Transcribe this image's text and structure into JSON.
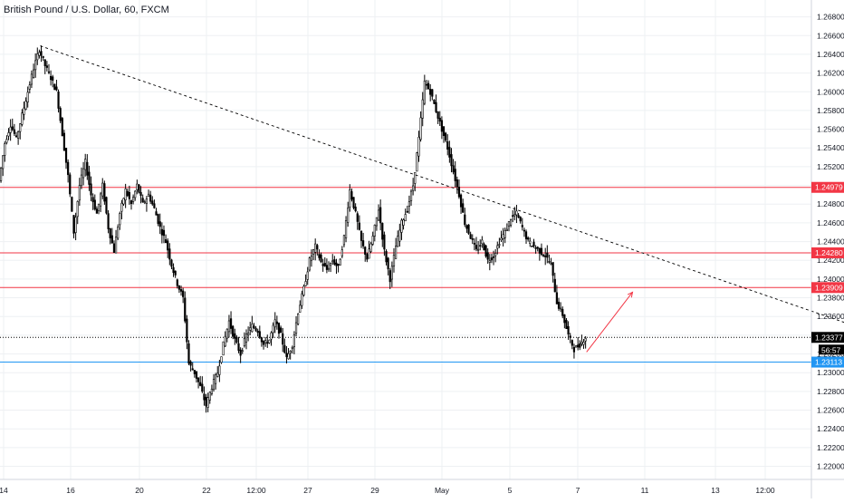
{
  "chart_data": {
    "type": "candlestick",
    "title": "British Pound / U.S. Dollar, 60, FXCM",
    "x_ticks": [
      "14",
      "16",
      "20",
      "22",
      "12:00",
      "27",
      "29",
      "May",
      "5",
      "7",
      "11",
      "13",
      "12:00"
    ],
    "y_ticks": [
      "1.26800",
      "1.26600",
      "1.26400",
      "1.26200",
      "1.26000",
      "1.25800",
      "1.25600",
      "1.25400",
      "1.25200",
      "1.25000",
      "1.24800",
      "1.24600",
      "1.24400",
      "1.24200",
      "1.24000",
      "1.23800",
      "1.23600",
      "1.23400",
      "1.23200",
      "1.23000",
      "1.22800",
      "1.22600",
      "1.22400",
      "1.22200",
      "1.22000"
    ],
    "ylim": [
      1.2186,
      1.2698
    ],
    "price_path": [
      [
        0,
        1.2505
      ],
      [
        1,
        1.2545
      ],
      [
        2,
        1.2565
      ],
      [
        3,
        1.255
      ],
      [
        4,
        1.2575
      ],
      [
        5,
        1.26
      ],
      [
        6,
        1.2625
      ],
      [
        7,
        1.2645
      ],
      [
        8,
        1.2628
      ],
      [
        9,
        1.2615
      ],
      [
        10,
        1.26
      ],
      [
        11,
        1.2555
      ],
      [
        12,
        1.251
      ],
      [
        13,
        1.245
      ],
      [
        14,
        1.25
      ],
      [
        15,
        1.2525
      ],
      [
        16,
        1.249
      ],
      [
        17,
        1.247
      ],
      [
        18,
        1.25
      ],
      [
        19,
        1.2455
      ],
      [
        20,
        1.243
      ],
      [
        21,
        1.247
      ],
      [
        22,
        1.2495
      ],
      [
        23,
        1.248
      ],
      [
        24,
        1.25
      ],
      [
        25,
        1.248
      ],
      [
        26,
        1.249
      ],
      [
        27,
        1.2475
      ],
      [
        28,
        1.2455
      ],
      [
        29,
        1.244
      ],
      [
        30,
        1.2415
      ],
      [
        31,
        1.2395
      ],
      [
        32,
        1.238
      ],
      [
        33,
        1.231
      ],
      [
        34,
        1.23
      ],
      [
        35,
        1.2285
      ],
      [
        36,
        1.2265
      ],
      [
        37,
        1.2285
      ],
      [
        38,
        1.23
      ],
      [
        39,
        1.233
      ],
      [
        40,
        1.2355
      ],
      [
        41,
        1.2335
      ],
      [
        42,
        1.232
      ],
      [
        43,
        1.234
      ],
      [
        44,
        1.235
      ],
      [
        45,
        1.2345
      ],
      [
        46,
        1.233
      ],
      [
        47,
        1.2335
      ],
      [
        48,
        1.2355
      ],
      [
        49,
        1.234
      ],
      [
        50,
        1.2315
      ],
      [
        51,
        1.233
      ],
      [
        52,
        1.2365
      ],
      [
        53,
        1.239
      ],
      [
        54,
        1.242
      ],
      [
        55,
        1.2435
      ],
      [
        56,
        1.2418
      ],
      [
        57,
        1.241
      ],
      [
        58,
        1.242
      ],
      [
        59,
        1.2412
      ],
      [
        60,
        1.2445
      ],
      [
        61,
        1.2495
      ],
      [
        62,
        1.247
      ],
      [
        63,
        1.244
      ],
      [
        64,
        1.2422
      ],
      [
        65,
        1.2445
      ],
      [
        66,
        1.2475
      ],
      [
        67,
        1.243
      ],
      [
        68,
        1.24
      ],
      [
        69,
        1.2435
      ],
      [
        70,
        1.246
      ],
      [
        71,
        1.2475
      ],
      [
        72,
        1.25
      ],
      [
        73,
        1.255
      ],
      [
        74,
        1.261
      ],
      [
        75,
        1.26
      ],
      [
        76,
        1.258
      ],
      [
        77,
        1.256
      ],
      [
        78,
        1.254
      ],
      [
        79,
        1.2515
      ],
      [
        80,
        1.249
      ],
      [
        81,
        1.246
      ],
      [
        82,
        1.2445
      ],
      [
        83,
        1.243
      ],
      [
        84,
        1.244
      ],
      [
        85,
        1.242
      ],
      [
        86,
        1.2425
      ],
      [
        87,
        1.244
      ],
      [
        88,
        1.245
      ],
      [
        89,
        1.2465
      ],
      [
        90,
        1.247
      ],
      [
        91,
        1.2455
      ],
      [
        92,
        1.244
      ],
      [
        93,
        1.2435
      ],
      [
        94,
        1.243
      ],
      [
        95,
        1.2425
      ],
      [
        96,
        1.2415
      ],
      [
        97,
        1.2375
      ],
      [
        98,
        1.2362
      ],
      [
        99,
        1.234
      ],
      [
        100,
        1.2325
      ],
      [
        101,
        1.233
      ],
      [
        102,
        1.2338
      ]
    ],
    "trend_line": {
      "start": [
        7,
        1.2649
      ],
      "end": [
        150,
        1.2347
      ]
    },
    "forecast_arrow": {
      "start": [
        102,
        1.2322
      ],
      "end": [
        110,
        1.2386
      ]
    },
    "horizontal_levels": [
      {
        "value": 1.24979,
        "label": "1.24979",
        "color": "#f23645"
      },
      {
        "value": 1.2428,
        "label": "1.24280",
        "color": "#f23645"
      },
      {
        "value": 1.23909,
        "label": "1.23909",
        "color": "#f23645"
      },
      {
        "value": 1.23113,
        "label": "1.23113",
        "color": "#2196f3"
      }
    ],
    "current_price": {
      "value": 1.23377,
      "label": "1.23377",
      "countdown": "56:57"
    },
    "grid": true,
    "colors": {
      "candle": "#000000",
      "levels": "#f23645",
      "support": "#2196f3",
      "arrow": "#f23645",
      "trend": "#000000"
    }
  }
}
